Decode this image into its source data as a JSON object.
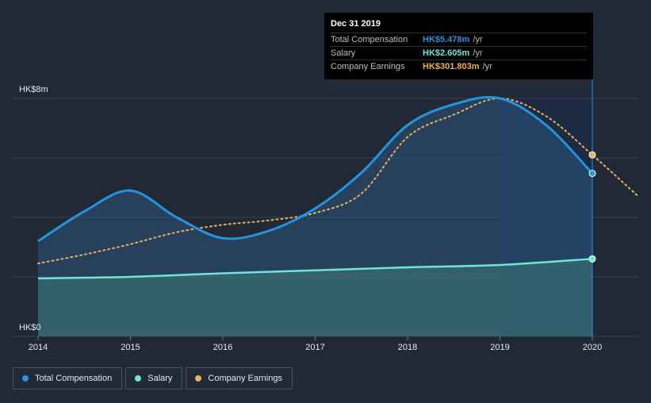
{
  "colors": {
    "total": "#2394df",
    "salary": "#6ee6d6",
    "earnings": "#e8b05c",
    "grid": "#3a414e"
  },
  "tooltip": {
    "date": "Dec 31 2019",
    "rows": [
      {
        "name": "Total Compensation",
        "value": "HK$5.478m",
        "unit": "/yr"
      },
      {
        "name": "Salary",
        "value": "HK$2.605m",
        "unit": "/yr"
      },
      {
        "name": "Company Earnings",
        "value": "HK$301.803m",
        "unit": "/yr"
      }
    ]
  },
  "legend": {
    "total_label": "Total Compensation",
    "salary_label": "Salary",
    "earnings_label": "Company Earnings"
  },
  "chart_data": {
    "type": "line",
    "title": "",
    "xlabel": "",
    "ylabel": "",
    "y_tick_labels": [
      "HK$0",
      "HK$8m"
    ],
    "ylim": [
      0,
      8
    ],
    "xlim": [
      2014,
      2020.5
    ],
    "x_ticks": [
      "2014",
      "2015",
      "2016",
      "2017",
      "2018",
      "2019",
      "2020"
    ],
    "highlight_range": [
      2019,
      2020
    ],
    "series": [
      {
        "name": "Total Compensation",
        "unit": "HK$m",
        "x": [
          2014,
          2014.5,
          2015,
          2015.5,
          2016,
          2016.5,
          2017,
          2017.5,
          2018,
          2018.5,
          2019,
          2019.5,
          2020
        ],
        "values": [
          3.2,
          4.2,
          4.9,
          4.0,
          3.3,
          3.55,
          4.3,
          5.5,
          7.1,
          7.8,
          8.0,
          7.1,
          5.478
        ]
      },
      {
        "name": "Salary",
        "unit": "HK$m",
        "x": [
          2014,
          2015,
          2016,
          2017,
          2018,
          2019,
          2020
        ],
        "values": [
          1.95,
          2.0,
          2.12,
          2.22,
          2.32,
          2.4,
          2.605
        ]
      },
      {
        "name": "Company Earnings",
        "unit": "HK$m (scaled to axis)",
        "x": [
          2014,
          2014.5,
          2015,
          2015.5,
          2016,
          2016.5,
          2017,
          2017.5,
          2018,
          2018.5,
          2019,
          2019.5,
          2020,
          2020.5
        ],
        "values": [
          2.45,
          2.75,
          3.1,
          3.5,
          3.75,
          3.9,
          4.15,
          4.8,
          6.7,
          7.45,
          8.0,
          7.4,
          6.1,
          4.7
        ]
      }
    ]
  }
}
